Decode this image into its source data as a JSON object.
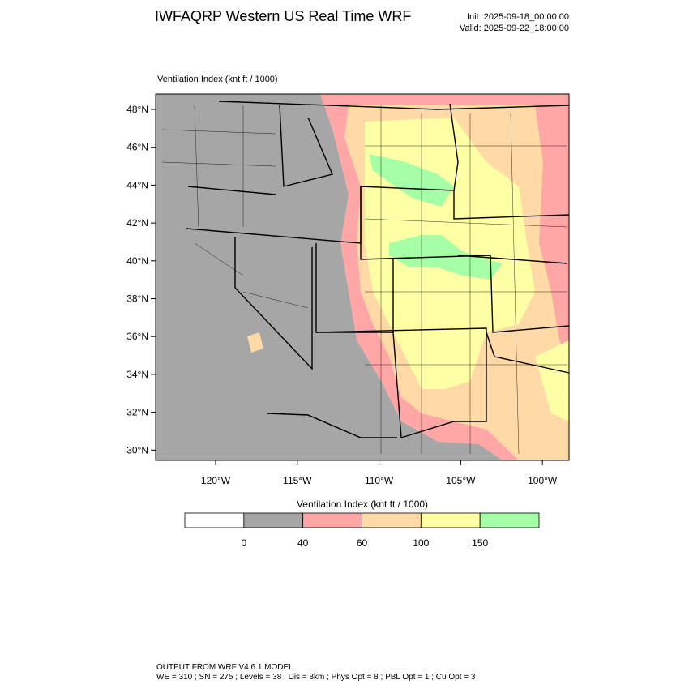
{
  "header": {
    "title": "IWFAQRP Western US Real Time WRF",
    "init": "Init: 2025-09-18_00:00:00",
    "valid": "Valid: 2025-09-22_18:00:00"
  },
  "map": {
    "field_label": "Ventilation Index   (knt ft / 1000)",
    "lat_labels": [
      "48°N",
      "46°N",
      "44°N",
      "42°N",
      "40°N",
      "38°N",
      "36°N",
      "34°N",
      "32°N",
      "30°N"
    ],
    "lon_labels": [
      "120°W",
      "115°W",
      "110°W",
      "105°W",
      "100°W"
    ]
  },
  "colorbar": {
    "label": "Ventilation Index  (knt ft / 1000)",
    "colors": [
      "#ffffff",
      "#a6a6a6",
      "#ffa6a6",
      "#ffd9a6",
      "#ffffa6",
      "#a6ffa6"
    ],
    "tick_labels": [
      "0",
      "40",
      "60",
      "100",
      "150"
    ]
  },
  "footer": {
    "line1": "OUTPUT FROM WRF V4.6.1 MODEL",
    "line2": "WE = 310 ; SN = 275 ; Levels = 38 ; Dis = 8km ; Phys Opt = 8 ; PBL Opt = 1 ; Cu Opt = 3"
  }
}
